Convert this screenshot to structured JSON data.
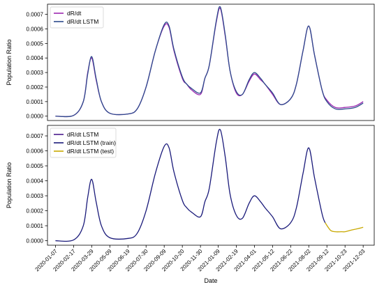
{
  "chart_data": [
    {
      "type": "line",
      "ylabel": "Population Ratio",
      "xlabel": "",
      "ylim": [
        -3e-05,
        0.00077
      ],
      "yticks": [
        0.0,
        0.0001,
        0.0002,
        0.0003,
        0.0004,
        0.0005,
        0.0006,
        0.0007
      ],
      "yticklabels": [
        "0.0000",
        "0.0001",
        "0.0002",
        "0.0003",
        "0.0004",
        "0.0005",
        "0.0006",
        "0.0007"
      ],
      "xlim": [
        "2019-12-20",
        "2021-12-28"
      ],
      "xticks": [],
      "legend_position": "upper-left",
      "series": [
        {
          "name": "dR/dt",
          "color": "#9c27b0",
          "x": [
            "2020-01-07",
            "2020-02-17",
            "2020-03-10",
            "2020-03-20",
            "2020-03-29",
            "2020-04-08",
            "2020-04-20",
            "2020-05-09",
            "2020-06-19",
            "2020-07-10",
            "2020-07-30",
            "2020-08-20",
            "2020-09-09",
            "2020-09-20",
            "2020-10-01",
            "2020-10-20",
            "2020-10-30",
            "2020-11-10",
            "2020-11-30",
            "2020-12-10",
            "2020-12-20",
            "2021-01-05",
            "2021-01-14",
            "2021-01-25",
            "2021-02-05",
            "2021-02-19",
            "2021-03-05",
            "2021-03-20",
            "2021-04-01",
            "2021-04-15",
            "2021-04-25",
            "2021-05-12",
            "2021-05-30",
            "2021-06-22",
            "2021-07-05",
            "2021-07-20",
            "2021-08-02",
            "2021-08-15",
            "2021-09-01",
            "2021-09-12",
            "2021-10-01",
            "2021-10-23",
            "2021-11-15",
            "2021-12-03"
          ],
          "values": [
            0.0,
            5e-06,
            0.0001,
            0.0003,
            0.0004,
            0.00025,
            0.0001,
            2e-05,
            1.5e-05,
            5e-05,
            0.0002,
            0.00045,
            0.00062,
            0.00061,
            0.00045,
            0.00026,
            0.00022,
            0.00018,
            0.00015,
            0.00026,
            0.00035,
            0.00065,
            0.00074,
            0.00055,
            0.00031,
            0.00016,
            0.00015,
            0.00024,
            0.00029,
            0.00025,
            0.00022,
            0.00015,
            8e-05,
            0.00012,
            0.00022,
            0.00045,
            0.00062,
            0.00042,
            0.00018,
            0.00011,
            6e-05,
            6e-05,
            7e-05,
            0.0001
          ]
        },
        {
          "name": "dR/dt LSTM",
          "color": "#2d4a8c",
          "x": [
            "2020-01-07",
            "2020-02-17",
            "2020-03-10",
            "2020-03-20",
            "2020-03-29",
            "2020-04-08",
            "2020-04-20",
            "2020-05-09",
            "2020-06-19",
            "2020-07-10",
            "2020-07-30",
            "2020-08-20",
            "2020-09-09",
            "2020-09-20",
            "2020-10-01",
            "2020-10-20",
            "2020-10-30",
            "2020-11-10",
            "2020-11-30",
            "2020-12-10",
            "2020-12-20",
            "2021-01-05",
            "2021-01-14",
            "2021-01-25",
            "2021-02-05",
            "2021-02-19",
            "2021-03-05",
            "2021-03-20",
            "2021-04-01",
            "2021-04-15",
            "2021-04-25",
            "2021-05-12",
            "2021-05-30",
            "2021-06-22",
            "2021-07-05",
            "2021-07-20",
            "2021-08-02",
            "2021-08-15",
            "2021-09-01",
            "2021-09-12",
            "2021-10-01",
            "2021-10-23",
            "2021-11-15",
            "2021-12-03"
          ],
          "values": [
            0.0,
            5e-06,
            0.0001,
            0.00029,
            0.00041,
            0.00026,
            0.0001,
            2e-05,
            1.5e-05,
            5e-05,
            0.0002,
            0.00045,
            0.00063,
            0.00062,
            0.00046,
            0.00027,
            0.00022,
            0.00019,
            0.00016,
            0.00026,
            0.00035,
            0.00066,
            0.00075,
            0.00056,
            0.00031,
            0.00017,
            0.00015,
            0.00025,
            0.0003,
            0.00026,
            0.00022,
            0.00016,
            8e-05,
            0.00012,
            0.00022,
            0.00045,
            0.00062,
            0.00042,
            0.00018,
            0.0001,
            5e-05,
            5e-05,
            6e-05,
            9e-05
          ]
        }
      ]
    },
    {
      "type": "line",
      "ylabel": "Population Ratio",
      "xlabel": "Date",
      "ylim": [
        -3e-05,
        0.00077
      ],
      "yticks": [
        0.0,
        0.0001,
        0.0002,
        0.0003,
        0.0004,
        0.0005,
        0.0006,
        0.0007
      ],
      "yticklabels": [
        "0.0000",
        "0.0001",
        "0.0002",
        "0.0003",
        "0.0004",
        "0.0005",
        "0.0006",
        "0.0007"
      ],
      "xlim": [
        "2019-12-20",
        "2021-12-28"
      ],
      "xticks": [
        "2020-01-07",
        "2020-02-17",
        "2020-03-29",
        "2020-05-09",
        "2020-06-19",
        "2020-07-30",
        "2020-09-09",
        "2020-10-20",
        "2020-11-30",
        "2021-01-09",
        "2021-02-19",
        "2021-04-01",
        "2021-05-12",
        "2021-06-22",
        "2021-08-02",
        "2021-09-12",
        "2021-10-23",
        "2021-12-03"
      ],
      "xticklabels": [
        "2020-01-07",
        "2020-02-17",
        "2020-03-29",
        "2020-05-09",
        "2020-06-19",
        "2020-07-30",
        "2020-09-09",
        "2020-10-20",
        "2020-11-30",
        "2021-01-09",
        "2021-02-19",
        "2021-04-01",
        "2021-05-12",
        "2021-06-22",
        "2021-08-02",
        "2021-09-12",
        "2021-10-23",
        "2021-12-03"
      ],
      "legend_position": "upper-left",
      "series": [
        {
          "name": "dR/dt LSTM",
          "color": "#4b1a8c",
          "legend_only": true,
          "x": [],
          "values": []
        },
        {
          "name": "dR/dt LSTM (train)",
          "color": "#1a1a7a",
          "x": [
            "2020-01-07",
            "2020-02-17",
            "2020-03-10",
            "2020-03-20",
            "2020-03-29",
            "2020-04-08",
            "2020-04-20",
            "2020-05-09",
            "2020-06-19",
            "2020-07-10",
            "2020-07-30",
            "2020-08-20",
            "2020-09-09",
            "2020-09-20",
            "2020-10-01",
            "2020-10-20",
            "2020-10-30",
            "2020-11-10",
            "2020-11-30",
            "2020-12-10",
            "2020-12-20",
            "2021-01-05",
            "2021-01-14",
            "2021-01-25",
            "2021-02-05",
            "2021-02-19",
            "2021-03-05",
            "2021-03-20",
            "2021-04-01",
            "2021-04-15",
            "2021-04-25",
            "2021-05-12",
            "2021-05-30",
            "2021-06-22",
            "2021-07-05",
            "2021-07-20",
            "2021-08-02",
            "2021-08-15",
            "2021-09-01",
            "2021-09-08"
          ],
          "values": [
            0.0,
            5e-06,
            0.0001,
            0.00029,
            0.00041,
            0.00026,
            0.0001,
            2e-05,
            1.5e-05,
            5e-05,
            0.0002,
            0.00045,
            0.00063,
            0.00062,
            0.00046,
            0.00027,
            0.00022,
            0.00019,
            0.00016,
            0.00026,
            0.00035,
            0.00066,
            0.00074,
            0.00056,
            0.00031,
            0.00017,
            0.00015,
            0.00025,
            0.0003,
            0.00026,
            0.00022,
            0.00016,
            8e-05,
            0.00012,
            0.00022,
            0.00045,
            0.00062,
            0.00042,
            0.00018,
            0.00012
          ]
        },
        {
          "name": "dR/dt LSTM (test)",
          "color": "#c8a800",
          "x": [
            "2021-09-08",
            "2021-09-20",
            "2021-10-01",
            "2021-10-15",
            "2021-10-23",
            "2021-11-05",
            "2021-11-20",
            "2021-12-03"
          ],
          "values": [
            0.00012,
            7e-05,
            6e-05,
            6e-05,
            6e-05,
            7e-05,
            8e-05,
            9e-05
          ]
        }
      ]
    }
  ]
}
